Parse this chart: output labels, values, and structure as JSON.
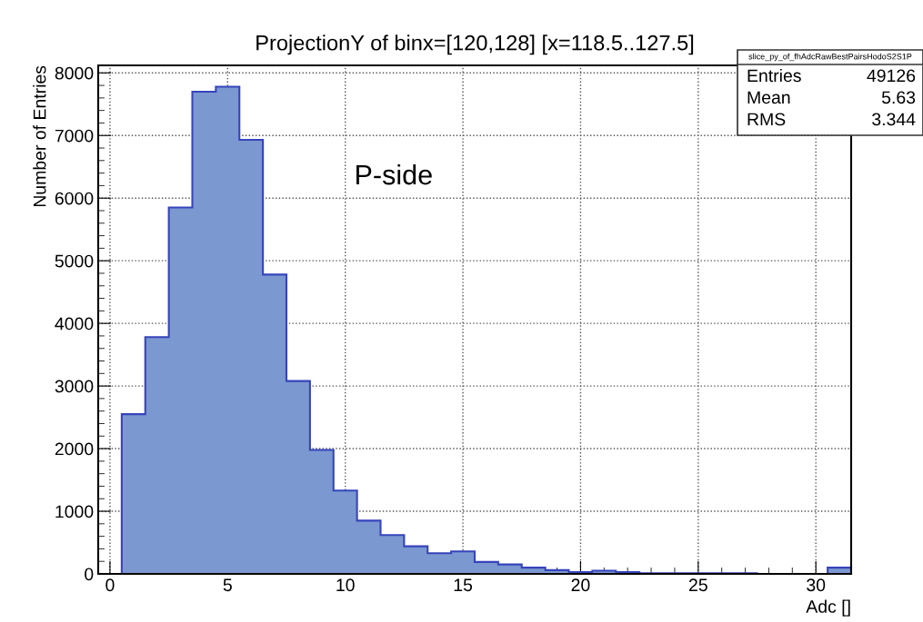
{
  "chart_data": {
    "type": "histogram",
    "title": "ProjectionY of binx=[120,128] [x=118.5..127.5]",
    "xlabel": "Adc []",
    "ylabel": "Number of Entries",
    "bins": [
      -0.5,
      0.5,
      1.5,
      2.5,
      3.5,
      4.5,
      5.5,
      6.5,
      7.5,
      8.5,
      9.5,
      10.5,
      11.5,
      12.5,
      13.5,
      14.5,
      15.5,
      16.5,
      17.5,
      18.5,
      19.5,
      20.5,
      21.5,
      22.5,
      23.5,
      24.5,
      25.5,
      26.5,
      27.5,
      28.5,
      29.5,
      30.5,
      31.5
    ],
    "values": [
      0,
      2550,
      3780,
      5850,
      7700,
      7780,
      6930,
      4780,
      3080,
      1980,
      1330,
      850,
      620,
      440,
      330,
      360,
      190,
      150,
      100,
      60,
      30,
      50,
      30,
      10,
      10,
      10,
      10,
      10,
      0,
      0,
      0,
      100
    ],
    "color": "#7b98d0",
    "xlim": [
      -0.5,
      31.5
    ],
    "ylim": [
      0,
      8120
    ],
    "xticks": [
      0,
      5,
      10,
      15,
      20,
      25,
      30
    ],
    "yticks": [
      0,
      1000,
      2000,
      3000,
      4000,
      5000,
      6000,
      7000,
      8000
    ],
    "grid": true,
    "annotations": [
      "P-side",
      "slice_py_of_fhAdcRawBestPairsHodoS2S1P",
      "Entries",
      "49126",
      "Mean",
      "5.63",
      "RMS",
      "3.344"
    ]
  }
}
